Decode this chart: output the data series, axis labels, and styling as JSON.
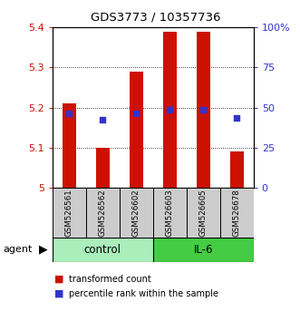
{
  "title": "GDS3773 / 10357736",
  "samples": [
    "GSM526561",
    "GSM526562",
    "GSM526602",
    "GSM526603",
    "GSM526605",
    "GSM526678"
  ],
  "groups": [
    "control",
    "control",
    "control",
    "IL-6",
    "IL-6",
    "IL-6"
  ],
  "bar_bottoms": [
    5.0,
    5.0,
    5.0,
    5.0,
    5.0,
    5.0
  ],
  "bar_tops": [
    5.21,
    5.1,
    5.29,
    5.39,
    5.39,
    5.09
  ],
  "percentile_values": [
    5.185,
    5.17,
    5.185,
    5.195,
    5.195,
    5.175
  ],
  "ylim_left": [
    5.0,
    5.4
  ],
  "ylim_right": [
    0,
    100
  ],
  "yticks_left": [
    5.0,
    5.1,
    5.2,
    5.3,
    5.4
  ],
  "yticks_right": [
    0,
    25,
    50,
    75,
    100
  ],
  "ytick_labels_left": [
    "5",
    "5.1",
    "5.2",
    "5.3",
    "5.4"
  ],
  "ytick_labels_right": [
    "0",
    "25",
    "50",
    "75",
    "100%"
  ],
  "grid_yticks": [
    5.1,
    5.2,
    5.3
  ],
  "bar_color": "#cc1100",
  "dot_color": "#3333cc",
  "control_color": "#aaeebb",
  "il6_color": "#44cc44",
  "sample_box_color": "#cccccc",
  "agent_label": "agent",
  "legend_bar_label": "transformed count",
  "legend_dot_label": "percentile rank within the sample",
  "axis_color_left": "#cc1100",
  "axis_color_right": "#3333cc"
}
